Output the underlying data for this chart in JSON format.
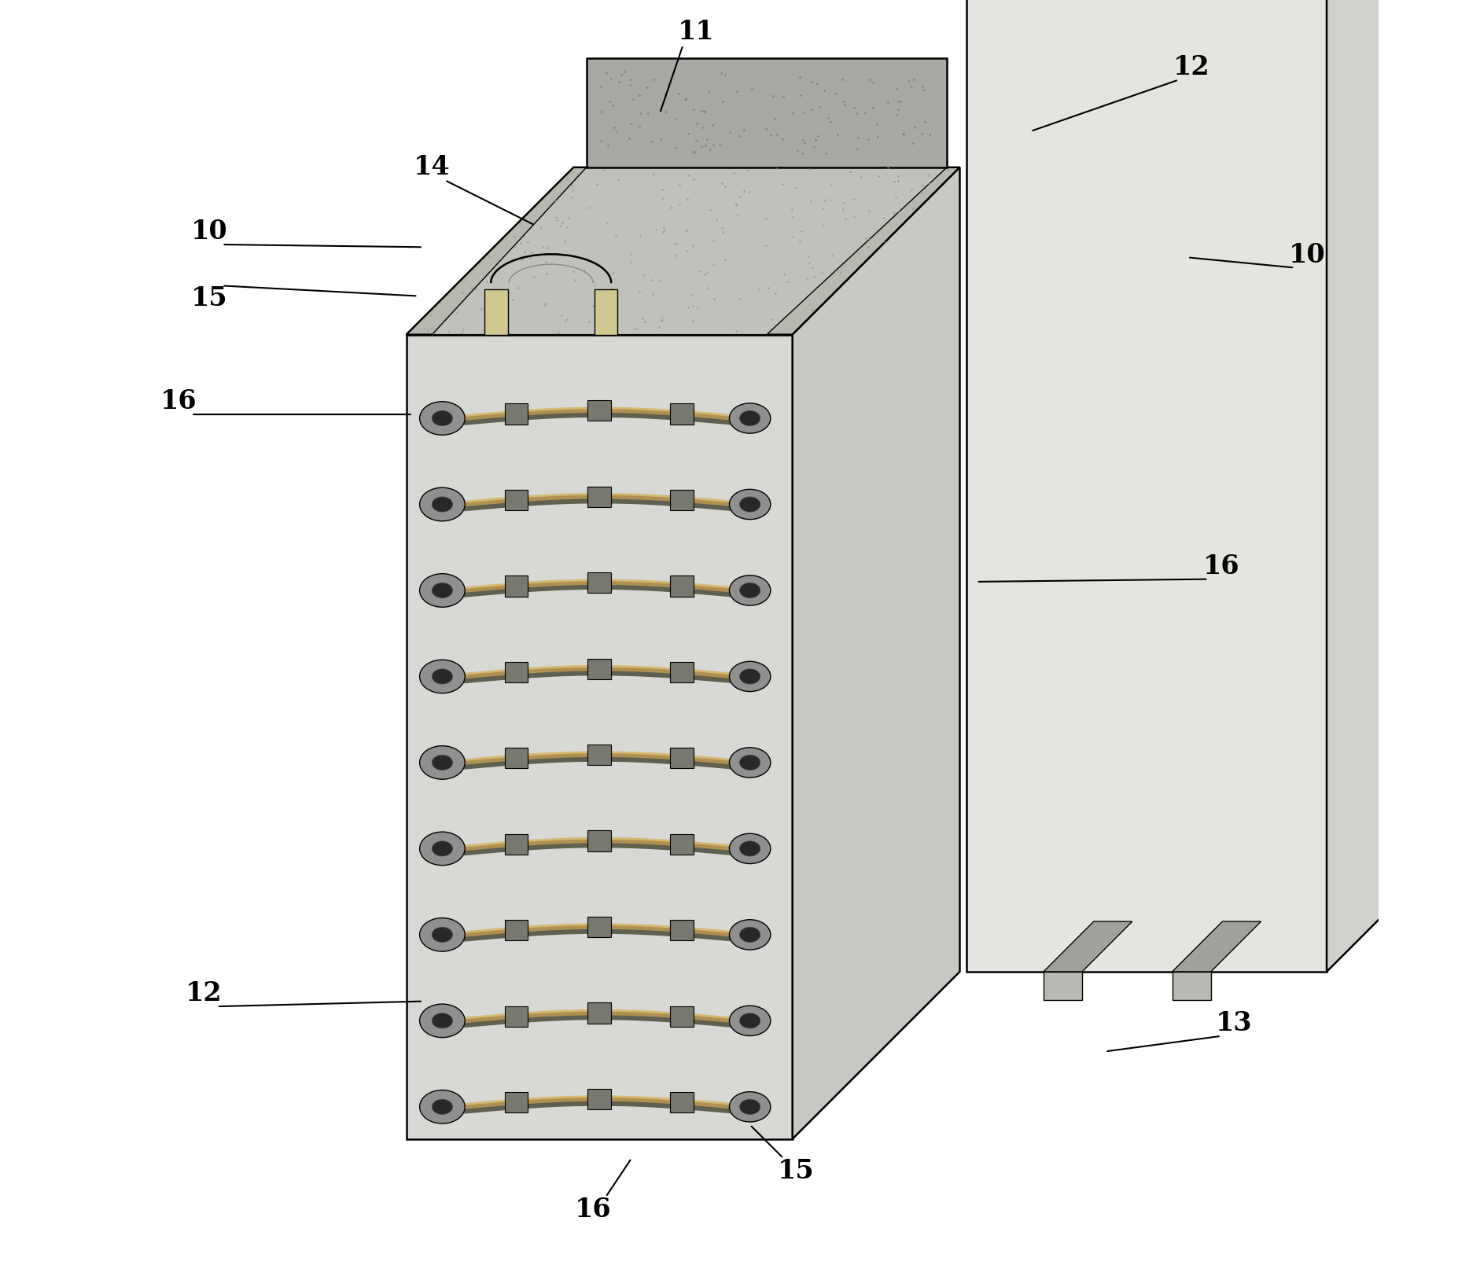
{
  "fig_width": 18.68,
  "fig_height": 16.37,
  "bg_color": "#ffffff",
  "line_color": "#000000",
  "front_face_color": "#d8d8d4",
  "top_face_color": "#b8b8b0",
  "side_face_color": "#c8c8c4",
  "right_block_front": "#e4e4e0",
  "right_block_top": "#b4b4b0",
  "right_block_side": "#d0d0cc",
  "coil_outer": "#909090",
  "coil_inner": "#303030",
  "tube_shadow": "#808070",
  "tube_highlight": "#c8a870",
  "connector_color": "#888880"
}
